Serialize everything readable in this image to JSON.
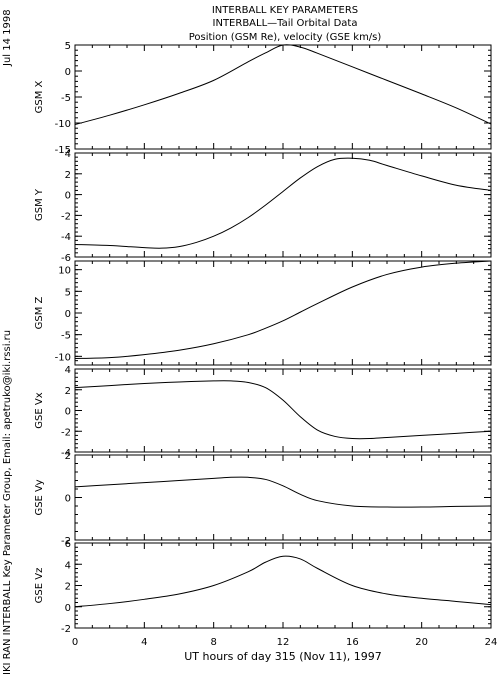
{
  "header": {
    "line1": "INTERBALL KEY PARAMETERS",
    "line2": "INTERBALL—Tail Orbital Data",
    "line3": "Position (GSM Re), velocity (GSE km/s)"
  },
  "side_date": "Jul 14 1998",
  "side_credit": "IKI RAN INTERBALL Key Parameter Group, Email: apetruko@iki.rssi.ru",
  "chart_data": [
    {
      "type": "line",
      "ylabel": "GSM X",
      "ylim": [
        -15,
        5
      ],
      "yticks": [
        -15,
        -10,
        -5,
        0,
        5
      ],
      "xlim": [
        0,
        24
      ],
      "series": [
        {
          "x": [
            0,
            2,
            4,
            6,
            8,
            10,
            11,
            12,
            13,
            14,
            16,
            18,
            20,
            22,
            24
          ],
          "values": [
            -10.3,
            -8.5,
            -6.5,
            -4.3,
            -1.8,
            1.8,
            3.5,
            5.0,
            4.6,
            3.4,
            0.8,
            -1.8,
            -4.4,
            -7.1,
            -10.2
          ]
        }
      ]
    },
    {
      "type": "line",
      "ylabel": "GSM Y",
      "ylim": [
        -6,
        4
      ],
      "yticks": [
        -6,
        -4,
        -2,
        0,
        2,
        4
      ],
      "xlim": [
        0,
        24
      ],
      "series": [
        {
          "x": [
            0,
            2,
            4,
            5,
            6,
            7,
            8,
            9,
            10,
            11,
            12,
            13,
            14,
            15,
            16,
            17,
            18,
            20,
            22,
            24
          ],
          "values": [
            -4.8,
            -4.9,
            -5.1,
            -5.15,
            -5.0,
            -4.6,
            -4.0,
            -3.2,
            -2.2,
            -1.0,
            0.3,
            1.6,
            2.7,
            3.4,
            3.5,
            3.3,
            2.8,
            1.8,
            0.9,
            0.4
          ]
        }
      ]
    },
    {
      "type": "line",
      "ylabel": "GSM Z",
      "ylim": [
        -12,
        12
      ],
      "yticks": [
        -10,
        -5,
        0,
        5,
        10
      ],
      "xlim": [
        0,
        24
      ],
      "series": [
        {
          "x": [
            0,
            2,
            4,
            6,
            8,
            10,
            11,
            12,
            13,
            14,
            16,
            18,
            20,
            22,
            24
          ],
          "values": [
            -10.5,
            -10.3,
            -9.6,
            -8.6,
            -7.1,
            -5.0,
            -3.5,
            -1.8,
            0.2,
            2.2,
            6.0,
            8.9,
            10.6,
            11.5,
            12.0
          ]
        }
      ]
    },
    {
      "type": "line",
      "ylabel": "GSE Vx",
      "ylim": [
        -4,
        4
      ],
      "yticks": [
        -4,
        -2,
        0,
        2,
        4
      ],
      "xlim": [
        0,
        24
      ],
      "series": [
        {
          "x": [
            0,
            2,
            4,
            6,
            8,
            9,
            10,
            11,
            12,
            13,
            14,
            15,
            16,
            17,
            18,
            20,
            22,
            24
          ],
          "values": [
            2.2,
            2.4,
            2.6,
            2.75,
            2.85,
            2.85,
            2.7,
            2.2,
            1.0,
            -0.6,
            -1.9,
            -2.5,
            -2.7,
            -2.7,
            -2.6,
            -2.4,
            -2.2,
            -2.0
          ]
        }
      ]
    },
    {
      "type": "line",
      "ylabel": "GSE Vy",
      "ylim": [
        -2,
        2
      ],
      "yticks": [
        -2,
        0,
        2
      ],
      "xlim": [
        0,
        24
      ],
      "series": [
        {
          "x": [
            0,
            2,
            4,
            6,
            8,
            9,
            10,
            11,
            12,
            13,
            14,
            16,
            18,
            20,
            22,
            24
          ],
          "values": [
            0.5,
            0.6,
            0.7,
            0.8,
            0.9,
            0.95,
            0.95,
            0.85,
            0.55,
            0.15,
            -0.15,
            -0.4,
            -0.45,
            -0.45,
            -0.42,
            -0.4
          ]
        }
      ]
    },
    {
      "type": "line",
      "ylabel": "GSE Vz",
      "ylim": [
        -2,
        6
      ],
      "yticks": [
        -2,
        0,
        2,
        4,
        6
      ],
      "xlim": [
        0,
        24
      ],
      "series": [
        {
          "x": [
            0,
            2,
            4,
            6,
            8,
            10,
            11,
            12,
            13,
            14,
            16,
            18,
            20,
            22,
            24
          ],
          "values": [
            0.0,
            0.3,
            0.7,
            1.2,
            2.0,
            3.3,
            4.2,
            4.75,
            4.5,
            3.6,
            2.0,
            1.2,
            0.8,
            0.5,
            0.2
          ]
        }
      ]
    }
  ],
  "xaxis": {
    "ticks": [
      0,
      4,
      8,
      12,
      16,
      20,
      24
    ],
    "tick_labels": [
      "0",
      "4",
      "8",
      "12",
      "16",
      "20",
      "24"
    ],
    "label": "UT hours of day 315 (Nov 11), 1997"
  }
}
